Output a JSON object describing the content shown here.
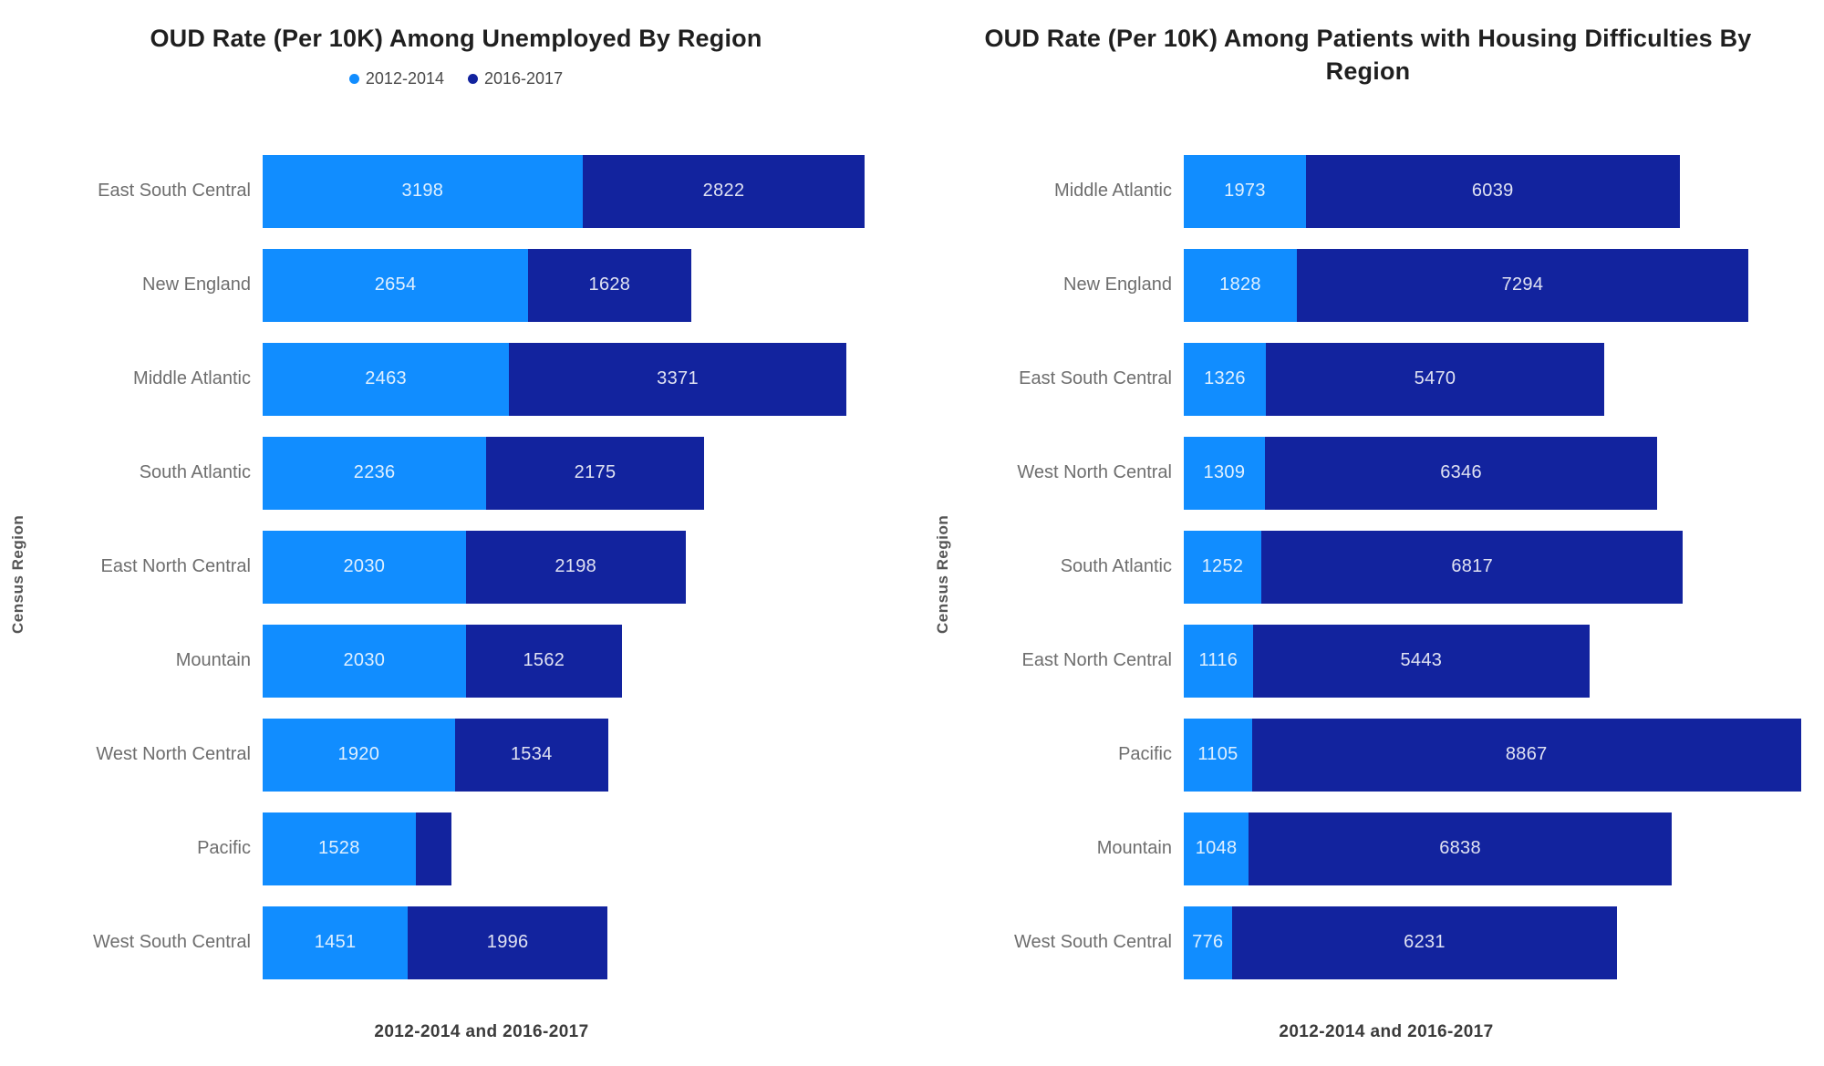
{
  "chart_data": [
    {
      "type": "bar",
      "orientation": "horizontal",
      "stacked": true,
      "title": "OUD Rate (Per 10K) Among Unemployed By Region",
      "xlabel": "2012-2014 and 2016-2017",
      "ylabel": "Census Region",
      "xlim": [
        0,
        6400
      ],
      "grid": false,
      "legend_position": "top-center",
      "legend": [
        {
          "label": "2012-2014",
          "color": "#118DFF"
        },
        {
          "label": "2016-2017",
          "color": "#12239E"
        }
      ],
      "categories": [
        "East South Central",
        "New England",
        "Middle Atlantic",
        "South Atlantic",
        "East North Central",
        "Mountain",
        "West North Central",
        "Pacific",
        "West South Central"
      ],
      "series": [
        {
          "name": "2012-2014",
          "color": "#118DFF",
          "values": [
            3198,
            2654,
            2463,
            2236,
            2030,
            2030,
            1920,
            1528,
            1451
          ],
          "labels": [
            "3198",
            "2654",
            "2463",
            "2236",
            "2030",
            "2030",
            "1920",
            "1528",
            "1451"
          ]
        },
        {
          "name": "2016-2017",
          "color": "#12239E",
          "values": [
            2822,
            1628,
            3371,
            2175,
            2198,
            1562,
            1534,
            360,
            1996
          ],
          "labels": [
            "2822",
            "1628",
            "3371",
            "2175",
            "2198",
            "1562",
            "1534",
            "",
            "1996"
          ]
        }
      ]
    },
    {
      "type": "bar",
      "orientation": "horizontal",
      "stacked": true,
      "title": "OUD Rate (Per 10K) Among Patients with Housing Difficulties By Region",
      "xlabel": "2012-2014 and 2016-2017",
      "ylabel": "Census Region",
      "xlim": [
        0,
        10200
      ],
      "grid": false,
      "legend": [],
      "categories": [
        "Middle Atlantic",
        "New England",
        "East South Central",
        "West North Central",
        "South Atlantic",
        "East North Central",
        "Pacific",
        "Mountain",
        "West South Central"
      ],
      "series": [
        {
          "name": "2012-2014",
          "color": "#118DFF",
          "values": [
            1973,
            1828,
            1326,
            1309,
            1252,
            1116,
            1105,
            1048,
            776
          ],
          "labels": [
            "1973",
            "1828",
            "1326",
            "1309",
            "1252",
            "1116",
            "1105",
            "1048",
            "776"
          ]
        },
        {
          "name": "2016-2017",
          "color": "#12239E",
          "values": [
            6039,
            7294,
            5470,
            6346,
            6817,
            5443,
            8867,
            6838,
            6231
          ],
          "labels": [
            "6039",
            "7294",
            "5470",
            "6346",
            "6817",
            "5443",
            "8867",
            "6838",
            "6231"
          ]
        }
      ]
    }
  ]
}
